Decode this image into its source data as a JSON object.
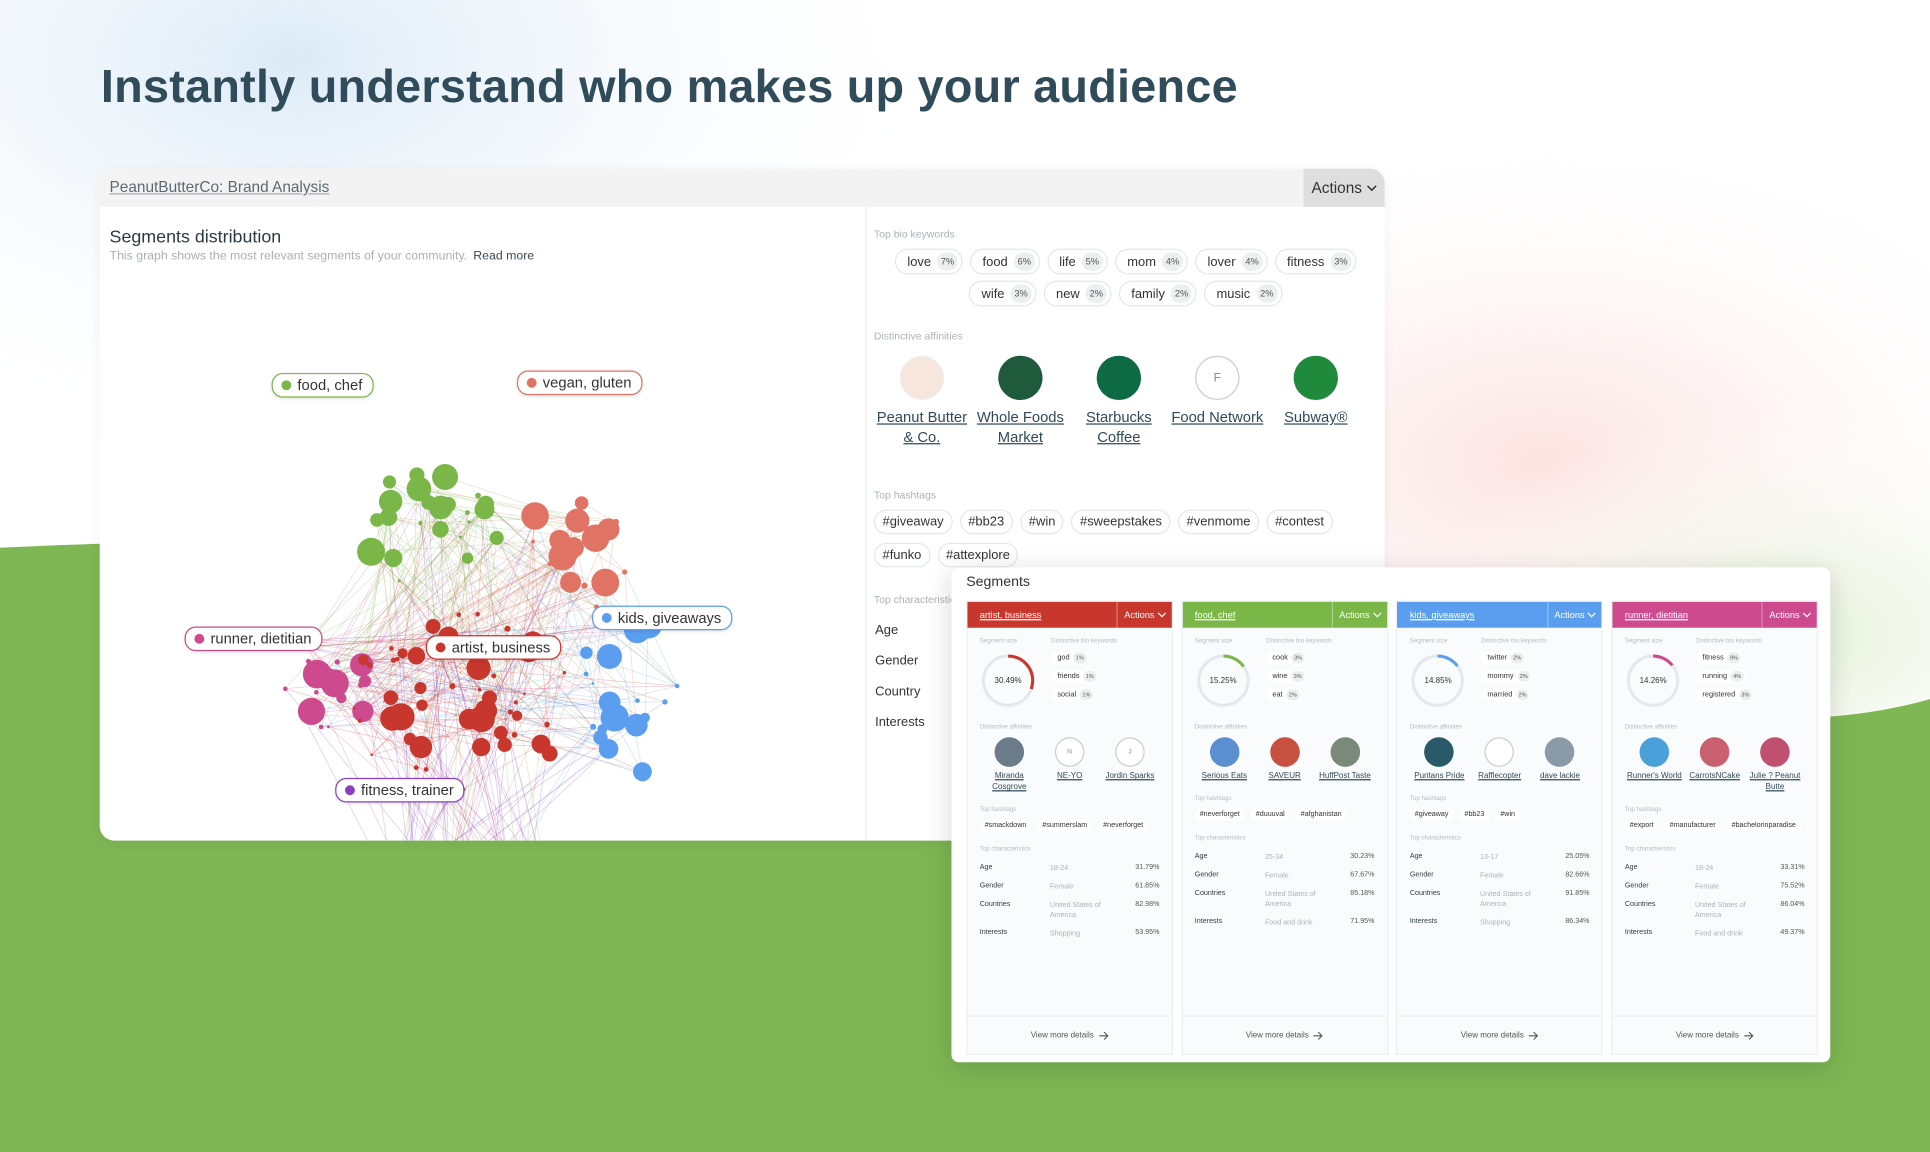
{
  "header": {
    "title": "Instantly understand who makes up your audience"
  },
  "panel": {
    "breadcrumb": "PeanutButterCo: Brand Analysis",
    "actions": "Actions"
  },
  "segments_distribution": {
    "title": "Segments distribution",
    "description": "This graph shows the most relevant segments of your community.",
    "read_more": "Read more",
    "labels": [
      {
        "text": "food, chef",
        "color": "#7ab648"
      },
      {
        "text": "vegan, gluten",
        "color": "#e07363"
      },
      {
        "text": "kids, giveaways",
        "color": "#5b9ef0"
      },
      {
        "text": "runner, dietitian",
        "color": "#cc4a8d"
      },
      {
        "text": "artist, business",
        "color": "#c8372d"
      },
      {
        "text": "fitness, trainer",
        "color": "#8a3fc2"
      }
    ]
  },
  "sidebar": {
    "bio_keywords_title": "Top bio keywords",
    "bio_keywords": [
      {
        "word": "love",
        "pct": "7%"
      },
      {
        "word": "food",
        "pct": "6%"
      },
      {
        "word": "life",
        "pct": "5%"
      },
      {
        "word": "mom",
        "pct": "4%"
      },
      {
        "word": "lover",
        "pct": "4%"
      },
      {
        "word": "fitness",
        "pct": "3%"
      },
      {
        "word": "wife",
        "pct": "3%"
      },
      {
        "word": "new",
        "pct": "2%"
      },
      {
        "word": "family",
        "pct": "2%"
      },
      {
        "word": "music",
        "pct": "2%"
      }
    ],
    "affinities_title": "Distinctive affinities",
    "affinities": [
      {
        "name": "Peanut Butter & Co."
      },
      {
        "name": "Whole Foods Market"
      },
      {
        "name": "Starbucks Coffee"
      },
      {
        "name": "Food Network",
        "letter": "F"
      },
      {
        "name": "Subway®"
      }
    ],
    "hashtags_title": "Top hashtags",
    "hashtags": [
      "#giveaway",
      "#bb23",
      "#win",
      "#sweepstakes",
      "#venmome",
      "#contest",
      "#funko",
      "#attexplore"
    ],
    "characteristics_title": "Top characteristics",
    "characteristics": [
      "Age",
      "Gender",
      "Country",
      "Interests"
    ]
  },
  "segments": {
    "title": "Segments",
    "actions": "Actions",
    "size_title": "Segment size",
    "keywords_title": "Distinctive bio keywords",
    "affinities_title": "Distinctive affinities",
    "hashtags_title": "Top hashtags",
    "characteristics_title": "Top characteristics",
    "view_more": "View more details",
    "cards": [
      {
        "name": "artist, business",
        "color": "#c8372d",
        "size": 30.49,
        "size_label": "30.49%",
        "keywords": [
          {
            "word": "god",
            "pct": "1%"
          },
          {
            "word": "friends",
            "pct": "1%"
          },
          {
            "word": "social",
            "pct": "1%"
          }
        ],
        "affinities": [
          {
            "name": "Miranda Cosgrove"
          },
          {
            "name": "NE-YO",
            "letter": "N"
          },
          {
            "name": "Jordin Sparks",
            "letter": "J"
          }
        ],
        "hashtags": [
          "#smackdown",
          "#summerslam",
          "#neverforget"
        ],
        "characteristics": [
          {
            "label": "Age",
            "value": "18-24",
            "pct": "31.79%"
          },
          {
            "label": "Gender",
            "value": "Female",
            "pct": "61.85%"
          },
          {
            "label": "Countries",
            "value": "United States of America",
            "pct": "82.98%"
          },
          {
            "label": "Interests",
            "value": "Shopping",
            "pct": "53.95%"
          }
        ]
      },
      {
        "name": "food, chef",
        "color": "#7ab648",
        "size": 15.25,
        "size_label": "15.25%",
        "keywords": [
          {
            "word": "cook",
            "pct": "3%"
          },
          {
            "word": "wine",
            "pct": "3%"
          },
          {
            "word": "eat",
            "pct": "2%"
          }
        ],
        "affinities": [
          {
            "name": "Serious Eats"
          },
          {
            "name": "SAVEUR"
          },
          {
            "name": "HuffPost Taste"
          }
        ],
        "hashtags": [
          "#neverforget",
          "#duuuval",
          "#afghanistan"
        ],
        "characteristics": [
          {
            "label": "Age",
            "value": "25-34",
            "pct": "30.23%"
          },
          {
            "label": "Gender",
            "value": "Female",
            "pct": "67.67%"
          },
          {
            "label": "Countries",
            "value": "United States of America",
            "pct": "85.18%"
          },
          {
            "label": "Interests",
            "value": "Food and drink",
            "pct": "71.95%"
          }
        ]
      },
      {
        "name": "kids, giveaways",
        "color": "#5b9ef0",
        "size": 14.85,
        "size_label": "14.85%",
        "keywords": [
          {
            "word": "twitter",
            "pct": "2%"
          },
          {
            "word": "mommy",
            "pct": "2%"
          },
          {
            "word": "married",
            "pct": "2%"
          }
        ],
        "affinities": [
          {
            "name": "Puritans Pride"
          },
          {
            "name": "Rafflecopter"
          },
          {
            "name": "dave lackie"
          }
        ],
        "hashtags": [
          "#giveaway",
          "#bb23",
          "#win"
        ],
        "characteristics": [
          {
            "label": "Age",
            "value": "13-17",
            "pct": "25.05%"
          },
          {
            "label": "Gender",
            "value": "Female",
            "pct": "82.66%"
          },
          {
            "label": "Countries",
            "value": "United States of America",
            "pct": "91.85%"
          },
          {
            "label": "Interests",
            "value": "Shopping",
            "pct": "86.34%"
          }
        ]
      },
      {
        "name": "runner, dietitian",
        "color": "#cc4a8d",
        "size": 14.26,
        "size_label": "14.26%",
        "keywords": [
          {
            "word": "fitness",
            "pct": "9%"
          },
          {
            "word": "running",
            "pct": "4%"
          },
          {
            "word": "registered",
            "pct": "3%"
          }
        ],
        "affinities": [
          {
            "name": "Runner's World"
          },
          {
            "name": "CarrotsNCake"
          },
          {
            "name": "Julie ? Peanut Butte"
          }
        ],
        "hashtags": [
          "#export",
          "#manufacturer",
          "#bachelorinparadise"
        ],
        "characteristics": [
          {
            "label": "Age",
            "value": "18-24",
            "pct": "33.31%"
          },
          {
            "label": "Gender",
            "value": "Female",
            "pct": "75.52%"
          },
          {
            "label": "Countries",
            "value": "United States of America",
            "pct": "86.04%"
          },
          {
            "label": "Interests",
            "value": "Food and drink",
            "pct": "49.37%"
          }
        ]
      }
    ]
  }
}
